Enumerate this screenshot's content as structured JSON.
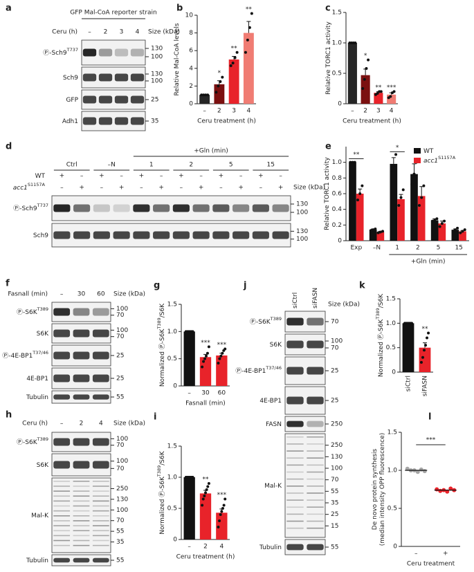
{
  "chart_data": [
    {
      "type": "bar",
      "panel": "b",
      "ylabel": [
        [
          {
            "t": "Relative Mal-CoA levels"
          }
        ]
      ],
      "xlabel": "Ceru treatment (h)",
      "categories": [
        "–",
        "2",
        "3",
        "4"
      ],
      "ylim": [
        0,
        10
      ],
      "yticks": [
        0,
        2,
        4,
        6,
        8,
        10
      ],
      "series": [
        {
          "colors": [
            "#262626",
            "#7b1010",
            "#e8232a",
            "#f07c73"
          ],
          "values": [
            1,
            2.2,
            5,
            8
          ],
          "errors": [
            0.05,
            0.4,
            0.35,
            1.3
          ],
          "points": [
            [
              1,
              1,
              1,
              1
            ],
            [
              1.3,
              2,
              2.5,
              3
            ],
            [
              4.3,
              4.6,
              5.2,
              5.8
            ],
            [
              5.8,
              7.2,
              8.6,
              10.2
            ]
          ]
        }
      ],
      "sig": [
        null,
        "*",
        "**",
        "**"
      ]
    },
    {
      "type": "bar",
      "panel": "c",
      "ylabel": [
        [
          {
            "t": "Relative TORC1 activity"
          }
        ]
      ],
      "xlabel": "Ceru treatment (h)",
      "categories": [
        "–",
        "2",
        "3",
        "4"
      ],
      "ylim": [
        0,
        1.5
      ],
      "yticks": [
        0,
        0.5,
        {
          "value": 1,
          "label": "1.0"
        },
        1.5
      ],
      "series": [
        {
          "colors": [
            "#262626",
            "#7b1010",
            "#e8232a",
            "#f07c73"
          ],
          "values": [
            1,
            0.47,
            0.18,
            0.15
          ],
          "errors": [
            0,
            0.1,
            0.02,
            0.03
          ],
          "points": [
            [
              1,
              1,
              1,
              1
            ],
            [
              0.25,
              0.4,
              0.58,
              0.72
            ],
            [
              0.15,
              0.17,
              0.2,
              0.2
            ],
            [
              0.1,
              0.12,
              0.18,
              0.2
            ]
          ]
        }
      ],
      "sig": [
        null,
        "*",
        "**",
        "***"
      ]
    },
    {
      "type": "bar",
      "panel": "e",
      "ylabel": [
        [
          {
            "t": "Relative TORC1 activity"
          }
        ]
      ],
      "xgroup": "+Gln (min)",
      "categories": [
        "Exp",
        "–N",
        "1",
        "2",
        "5",
        "15"
      ],
      "ylim": [
        0,
        1.2
      ],
      "yticks": [
        0,
        0.2,
        0.4,
        0.6,
        0.8,
        {
          "value": 1,
          "label": "1.0"
        }
      ],
      "legend": "top-right",
      "series": [
        {
          "name": "WT",
          "color": "#111111",
          "values": [
            1,
            0.14,
            0.98,
            0.85,
            0.26,
            0.14
          ],
          "errors": [
            0.01,
            0.01,
            0.08,
            0.13,
            0.02,
            0.01
          ],
          "points": [
            [
              1,
              1,
              1
            ],
            [
              0.13,
              0.14,
              0.15
            ],
            [
              0.9,
              0.95,
              1.1
            ],
            [
              0.72,
              0.85,
              1
            ],
            [
              0.25,
              0.26,
              0.28
            ],
            [
              0.12,
              0.14,
              0.16
            ]
          ]
        },
        {
          "name": "acc1",
          "name_sup": "S1157A",
          "name_style": "italic",
          "color": "#e8232a",
          "values": [
            0.6,
            0.11,
            0.53,
            0.57,
            0.22,
            0.12
          ],
          "errors": [
            0.06,
            0.01,
            0.06,
            0.12,
            0.03,
            0.01
          ],
          "points": [
            [
              0.52,
              0.6,
              0.7
            ],
            [
              0.1,
              0.11,
              0.12
            ],
            [
              0.45,
              0.55,
              0.65
            ],
            [
              0.45,
              0.55,
              0.7
            ],
            [
              0.18,
              0.22,
              0.25
            ],
            [
              0.1,
              0.12,
              0.14
            ]
          ]
        }
      ],
      "sig": [
        "**",
        null,
        "*",
        null,
        null,
        null
      ]
    },
    {
      "type": "bar",
      "panel": "g",
      "ylabel": [
        [
          {
            "t": "Normalized Ⓟ-S6K"
          },
          {
            "sup": "T389"
          },
          {
            "t": "/S6K"
          }
        ]
      ],
      "xlabel": "Fasnall (min)",
      "categories": [
        "–",
        "30",
        "60"
      ],
      "ylim": [
        0,
        1.5
      ],
      "yticks": [
        0,
        0.5,
        {
          "value": 1,
          "label": "1.0"
        },
        1.5
      ],
      "series": [
        {
          "colors": [
            "#111111",
            "#e8232a",
            "#e8232a"
          ],
          "values": [
            1,
            0.53,
            0.56
          ],
          "errors": [
            0,
            0.05,
            0.04
          ],
          "points": [
            [
              1,
              1,
              1,
              1,
              1,
              1
            ],
            [
              0.35,
              0.45,
              0.5,
              0.55,
              0.6,
              0.72
            ],
            [
              0.42,
              0.5,
              0.55,
              0.6,
              0.65,
              0.68
            ]
          ]
        }
      ],
      "sig": [
        null,
        "***",
        "***"
      ]
    },
    {
      "type": "bar",
      "panel": "i",
      "ylabel": [
        [
          {
            "t": "Normalized Ⓟ-S6K"
          },
          {
            "sup": "T389"
          },
          {
            "t": "/S6K"
          }
        ]
      ],
      "xlabel": "Ceru treatment (h)",
      "categories": [
        "–",
        "2",
        "4"
      ],
      "ylim": [
        0,
        1.5
      ],
      "yticks": [
        0,
        0.5,
        {
          "value": 1,
          "label": "1.0"
        },
        1.5
      ],
      "series": [
        {
          "colors": [
            "#111111",
            "#e8232a",
            "#e8232a"
          ],
          "values": [
            1,
            0.74,
            0.43
          ],
          "errors": [
            0,
            0.05,
            0.06
          ],
          "points": [
            [
              1,
              1,
              1,
              1,
              1,
              1,
              1
            ],
            [
              0.55,
              0.65,
              0.7,
              0.75,
              0.8,
              0.85,
              0.9
            ],
            [
              0.2,
              0.3,
              0.4,
              0.45,
              0.5,
              0.55,
              0.65
            ]
          ]
        }
      ],
      "sig": [
        null,
        "**",
        "***"
      ]
    },
    {
      "type": "bar",
      "panel": "k",
      "ylabel": [
        [
          {
            "t": "Normalized Ⓟ-S6K"
          },
          {
            "sup": "T389"
          },
          {
            "t": "/S6K"
          }
        ]
      ],
      "categories": [
        "siCtrl",
        "siFASN"
      ],
      "ylim": [
        0,
        1.5
      ],
      "yticks": [
        0,
        0.5,
        {
          "value": 1,
          "label": "1.0"
        },
        1.5
      ],
      "series": [
        {
          "colors": [
            "#111111",
            "#e8232a"
          ],
          "values": [
            1,
            0.5
          ],
          "errors": [
            0,
            0.1
          ],
          "points": [
            [
              1,
              1,
              1,
              1,
              1,
              1
            ],
            [
              0.2,
              0.3,
              0.45,
              0.55,
              0.7,
              0.8
            ]
          ]
        }
      ],
      "sig": [
        null,
        "**"
      ]
    },
    {
      "type": "strip",
      "panel": "l",
      "ylabel": [
        [
          {
            "t": "De novo protein synthesis"
          }
        ],
        [
          {
            "t": "(median intensity OPP fluorescence)"
          }
        ]
      ],
      "xlabel": "Ceru treatment",
      "categories": [
        "–",
        "+"
      ],
      "ylim": [
        0,
        1.5
      ],
      "yticks": [
        0,
        0.5,
        {
          "value": 1,
          "label": "1.0"
        },
        1.5
      ],
      "colors": [
        "#a6a6a6",
        "#e8232a"
      ],
      "values": [
        [
          1.02,
          1,
          1,
          0.98,
          1.01,
          0.99
        ],
        [
          0.75,
          0.73,
          0.74,
          0.72,
          0.76,
          0.74
        ]
      ],
      "means": [
        1,
        0.74
      ],
      "sig": "***"
    }
  ],
  "blots": [
    {
      "panel": "a",
      "header": "GFP Mal-CoA reporter strain",
      "lane_title": "Ceru (h)",
      "lanes": [
        "–",
        "2",
        "3",
        "4"
      ],
      "size_label": "Size (kDa)",
      "rows": [
        {
          "label": "Ⓟ-Sch9",
          "sup": "T737",
          "markers": [
            130,
            100
          ]
        },
        {
          "label": "Sch9",
          "markers": [
            130,
            100
          ]
        },
        {
          "label": "GFP",
          "markers": [
            25
          ]
        },
        {
          "label": "Adh1",
          "markers": [
            35
          ]
        }
      ]
    },
    {
      "panel": "d",
      "group_title": "+Gln (min)",
      "groups": [
        "Ctrl",
        "–N",
        "1",
        "2",
        "5",
        "15"
      ],
      "size_label": "Size (kDa)",
      "genotypes": [
        {
          "label": "WT",
          "signs": [
            "+",
            "–",
            "+",
            "–",
            "+",
            "–",
            "+",
            "–",
            "+",
            "–",
            "+",
            "–"
          ]
        },
        {
          "label": "acc1",
          "sup": "S1157A",
          "signs": [
            "–",
            "+",
            "–",
            "+",
            "–",
            "+",
            "–",
            "+",
            "–",
            "+",
            "–",
            "+"
          ]
        }
      ],
      "rows": [
        {
          "label": "Ⓟ-Sch9",
          "sup": "T737",
          "markers": [
            130,
            100
          ]
        },
        {
          "label": "Sch9",
          "markers": [
            130,
            100
          ]
        }
      ]
    },
    {
      "panel": "f",
      "lane_title": "Fasnall (min)",
      "lanes": [
        "–",
        "30",
        "60"
      ],
      "size_label": "Size (kDa)",
      "rows": [
        {
          "label": "Ⓟ-S6K",
          "sup": "T389",
          "markers": [
            100,
            70
          ]
        },
        {
          "label": "S6K",
          "markers": [
            100,
            70
          ]
        },
        {
          "label": "Ⓟ-4E-BP1",
          "sup": "T37/46",
          "markers": [
            25
          ]
        },
        {
          "label": "4E-BP1",
          "markers": [
            25
          ]
        },
        {
          "label": "Tubulin",
          "markers": [
            55
          ]
        }
      ]
    },
    {
      "panel": "h",
      "lane_title": "Ceru (h)",
      "lanes": [
        "–",
        "2",
        "4"
      ],
      "size_label": "Size (kDa)",
      "rows": [
        {
          "label": "Ⓟ-S6K",
          "sup": "T389",
          "markers": [
            100,
            70
          ]
        },
        {
          "label": "S6K",
          "markers": [
            100,
            70
          ]
        },
        {
          "label": "Mal-K",
          "markers": [
            250,
            130,
            100,
            70,
            55,
            35
          ]
        },
        {
          "label": "Tubulin",
          "markers": [
            55
          ]
        }
      ]
    },
    {
      "panel": "j",
      "lanes": [
        "siCtrl",
        "siFASN"
      ],
      "size_label": "Size (kDa)",
      "rows": [
        {
          "label": "Ⓟ-S6K",
          "sup": "T389",
          "markers": [
            70
          ]
        },
        {
          "label": "S6K",
          "markers": [
            100,
            70
          ]
        },
        {
          "label": "Ⓟ-4E-BP1",
          "sup": "T37/46",
          "markers": [
            25
          ]
        },
        {
          "label": "4E-BP1",
          "markers": [
            25
          ]
        },
        {
          "label": "FASN",
          "markers": [
            250
          ]
        },
        {
          "label": "Mal-K",
          "markers": [
            250,
            130,
            100,
            70,
            55,
            35,
            25,
            15
          ]
        },
        {
          "label": "Tubulin",
          "markers": [
            55
          ]
        }
      ]
    }
  ]
}
